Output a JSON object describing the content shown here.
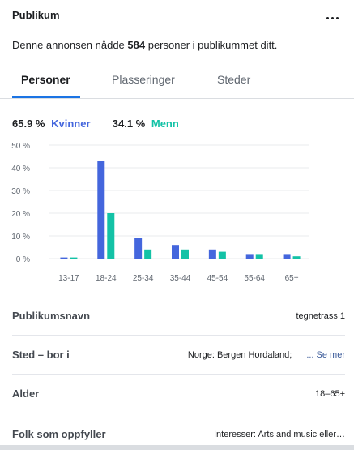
{
  "header": {
    "title": "Publikum",
    "more_icon": "more-horizontal-icon"
  },
  "summary": {
    "prefix": "Denne annonsen nådde ",
    "count": "584",
    "suffix": " personer i publikummet ditt."
  },
  "tabs": [
    {
      "label": "Personer",
      "active": true
    },
    {
      "label": "Plasseringer",
      "active": false
    },
    {
      "label": "Steder",
      "active": false
    }
  ],
  "gender": {
    "women_pct": "65.9 %",
    "women_label": "Kvinner",
    "men_pct": "34.1 %",
    "men_label": "Menn"
  },
  "colors": {
    "women": "#4466dd",
    "men": "#13c2a6",
    "accent": "#1b74e4"
  },
  "chart_data": {
    "type": "bar",
    "categories": [
      "13-17",
      "18-24",
      "25-34",
      "35-44",
      "45-54",
      "55-64",
      "65+"
    ],
    "series": [
      {
        "name": "Kvinner",
        "values": [
          0.5,
          43,
          9,
          6,
          4,
          2,
          2
        ]
      },
      {
        "name": "Menn",
        "values": [
          0.5,
          20,
          4,
          4,
          3,
          2,
          1
        ]
      }
    ],
    "ylim": [
      0,
      50
    ],
    "yticks": [
      "50 %",
      "40 %",
      "30 %",
      "20 %",
      "10 %",
      "0 %"
    ],
    "grid": true
  },
  "details": [
    {
      "label": "Publikumsnavn",
      "value": "tegnetrass 1"
    },
    {
      "label": "Sted – bor i",
      "value": "Norge: Bergen Hordaland;",
      "link": "... Se mer"
    },
    {
      "label": "Alder",
      "value": "18–65+"
    },
    {
      "label": "Folk som oppfyller",
      "value": "Interesser: Arts and music eller…"
    }
  ]
}
